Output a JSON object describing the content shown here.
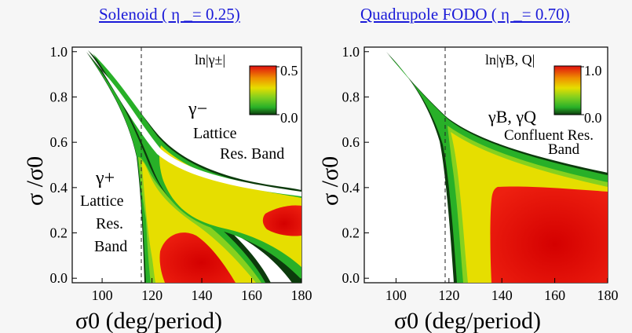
{
  "titles": {
    "left": "Solenoid ( η _= 0.25)",
    "right": "Quadrupole FODO ( η _= 0.70)"
  },
  "colors": {
    "title": "#1a1ad8",
    "background": "#f6f6f6",
    "plot_bg": "#ffffff",
    "red": "#e01010",
    "yellow": "#e6de00",
    "green": "#28b028",
    "darkgreen": "#0c3a0c"
  },
  "chart_data": [
    {
      "type": "heatmap",
      "title": "Solenoid ( η _= 0.25)",
      "xlabel": "σ0 (deg/period)",
      "ylabel": "σ /σ0",
      "xlim": [
        88,
        180
      ],
      "ylim": [
        -0.02,
        1.02
      ],
      "xticks": [
        "100",
        "120",
        "140",
        "160",
        "180"
      ],
      "yticks": [
        "0.0",
        "0.2",
        "0.4",
        "0.6",
        "0.8",
        "1.0"
      ],
      "dashed_vline_x": 115,
      "colorbar": {
        "label": "ln|γ±|",
        "min": "0.0",
        "max": "0.5"
      },
      "annotations": [
        {
          "symbol": "γ−",
          "lines": [
            "Lattice",
            "Res. Band"
          ]
        },
        {
          "symbol": "γ+",
          "lines": [
            "Lattice",
            "Res.",
            "Band"
          ]
        }
      ]
    },
    {
      "type": "heatmap",
      "title": "Quadrupole FODO ( η _= 0.70)",
      "xlabel": "σ0 (deg/period)",
      "ylabel": "σ /σ0",
      "xlim": [
        88,
        180
      ],
      "ylim": [
        -0.02,
        1.02
      ],
      "xticks": [
        "100",
        "120",
        "140",
        "160",
        "180"
      ],
      "yticks": [
        "0.0",
        "0.2",
        "0.4",
        "0.6",
        "0.8",
        "1.0"
      ],
      "dashed_vline_x": 115,
      "colorbar": {
        "label": "ln|γB, Q|",
        "min": "0.0",
        "max": "1.0"
      },
      "annotations": [
        {
          "symbol": "γB, γQ",
          "lines": [
            "Confluent Res.",
            "Band"
          ]
        }
      ]
    }
  ]
}
